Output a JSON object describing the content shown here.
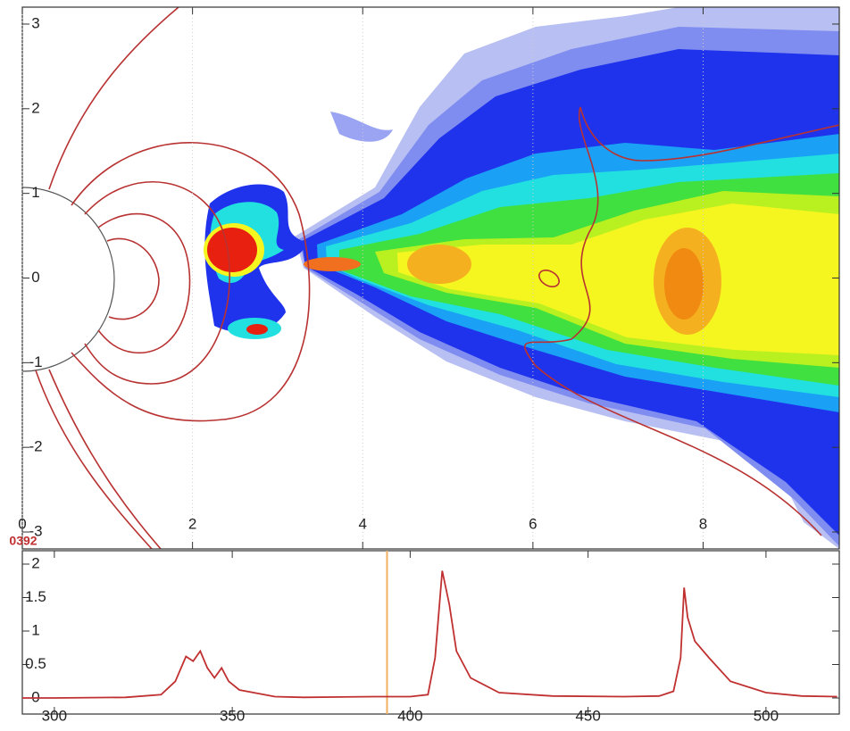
{
  "chart_data": [
    {
      "type": "contour",
      "annotation": "0392",
      "xlim": [
        0,
        9.6
      ],
      "ylim": [
        -3.2,
        3.2
      ],
      "xticks": [
        0,
        2,
        4,
        6,
        8
      ],
      "yticks": [
        3,
        2,
        1,
        0,
        -1,
        -2,
        -3
      ],
      "grid": true
    },
    {
      "type": "line",
      "x": [
        291,
        300,
        320,
        330,
        334,
        337,
        339,
        341,
        343,
        345,
        347,
        349,
        352,
        356,
        362,
        370,
        390,
        400,
        405,
        407,
        409,
        411,
        413,
        417,
        425,
        440,
        460,
        470,
        474,
        476,
        477,
        478,
        480,
        484,
        490,
        500,
        510,
        520
      ],
      "series": [
        {
          "color": "#c03030",
          "values": [
            0,
            0,
            0.01,
            0.05,
            0.25,
            0.62,
            0.55,
            0.7,
            0.45,
            0.3,
            0.45,
            0.25,
            0.12,
            0.08,
            0.02,
            0.01,
            0.02,
            0.02,
            0.05,
            0.6,
            1.9,
            1.4,
            0.7,
            0.3,
            0.08,
            0.03,
            0.02,
            0.03,
            0.1,
            0.6,
            1.65,
            1.2,
            0.85,
            0.6,
            0.25,
            0.08,
            0.03,
            0.02
          ]
        }
      ],
      "vline": 393.5,
      "vline_color": "#f0b060",
      "xlim": [
        291,
        520.6
      ],
      "ylim": [
        -0.24,
        2.2
      ],
      "xticks": [
        300,
        350,
        400,
        450,
        500
      ],
      "yticks": [
        0,
        0.5,
        1,
        1.5,
        2
      ]
    }
  ]
}
